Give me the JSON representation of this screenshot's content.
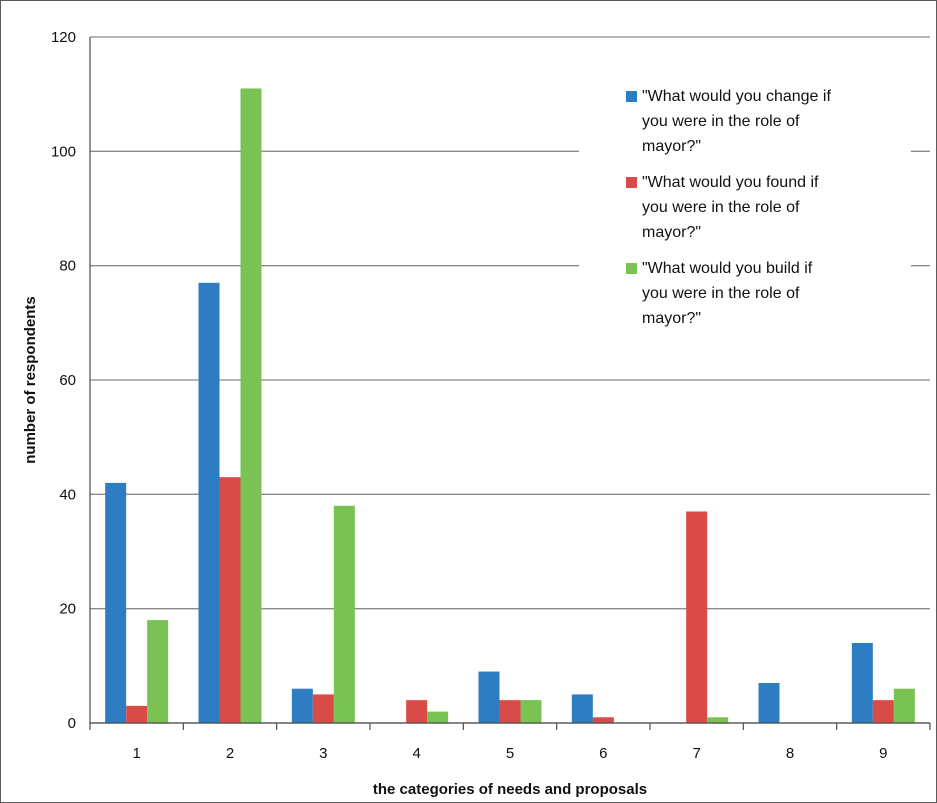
{
  "chart_data": {
    "type": "bar",
    "xlabel": "the categories of needs and proposals",
    "ylabel": "number of respondents",
    "categories": [
      "1",
      "2",
      "3",
      "4",
      "5",
      "6",
      "7",
      "8",
      "9"
    ],
    "ylim": [
      0,
      120
    ],
    "yticks": [
      0,
      20,
      40,
      60,
      80,
      100,
      120
    ],
    "grid": true,
    "legend_position": "top-right",
    "series": [
      {
        "name": "\"What would you change if you were in the role of mayor?\"",
        "legend_lines": [
          "\"What would you change if",
          "you were in the role of",
          "mayor?\""
        ],
        "color": "#2e7cc1",
        "values": [
          42,
          77,
          6,
          0,
          9,
          5,
          0,
          7,
          14
        ]
      },
      {
        "name": "\"What would you found if you were in the role of mayor?\"",
        "legend_lines": [
          "\"What would you found if",
          "you were in the role of",
          "mayor?\""
        ],
        "color": "#d94b49",
        "values": [
          3,
          43,
          5,
          4,
          4,
          1,
          37,
          0,
          4
        ]
      },
      {
        "name": "\"What would you build if you were in the role of mayor?\"",
        "legend_lines": [
          "\"What would you build if",
          "you were in the role of",
          "mayor?\""
        ],
        "color": "#79c253",
        "values": [
          18,
          111,
          38,
          2,
          4,
          0,
          1,
          0,
          6
        ]
      }
    ]
  }
}
